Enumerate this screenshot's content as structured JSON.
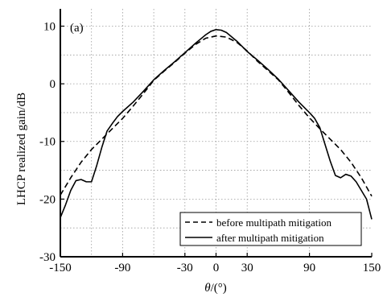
{
  "chart_data": {
    "type": "line",
    "panel_label": "(a)",
    "xlabel_symbol": "θ",
    "xlabel_rest": "/(°)",
    "ylabel": "LHCP realized gain/dB",
    "xlim": [
      -150,
      150
    ],
    "ylim": [
      -30,
      13
    ],
    "x_ticks": [
      -150,
      -90,
      -30,
      0,
      30,
      90,
      150
    ],
    "y_ticks": [
      10,
      0,
      -10,
      -20,
      -30
    ],
    "x_minor_grid": [
      -120,
      -60
    ],
    "y_minor_grid": [
      5,
      -5,
      -15,
      -25
    ],
    "grid": true,
    "legend_position": "bottom-right",
    "series": [
      {
        "name": "before multipath mitigation",
        "style": "dashed",
        "color": "#000000",
        "x": [
          -150,
          -140,
          -130,
          -120,
          -110,
          -100,
          -90,
          -80,
          -70,
          -60,
          -50,
          -40,
          -30,
          -20,
          -10,
          0,
          10,
          20,
          30,
          40,
          50,
          60,
          70,
          80,
          90,
          100,
          110,
          120,
          130,
          140,
          150
        ],
        "y": [
          -19.3,
          -16.3,
          -13.6,
          -11.4,
          -9.6,
          -7.8,
          -6.0,
          -3.9,
          -1.7,
          0.6,
          2.2,
          3.7,
          5.3,
          6.8,
          7.9,
          8.3,
          8.1,
          7.2,
          5.7,
          3.9,
          2.3,
          0.7,
          -1.5,
          -3.8,
          -5.9,
          -7.8,
          -9.6,
          -11.4,
          -13.6,
          -16.3,
          -19.5
        ]
      },
      {
        "name": "after multipath mitigation",
        "style": "solid",
        "color": "#000000",
        "x": [
          -150,
          -145,
          -140,
          -135,
          -130,
          -125,
          -120,
          -115,
          -110,
          -105,
          -100,
          -95,
          -90,
          -80,
          -70,
          -60,
          -50,
          -40,
          -30,
          -20,
          -10,
          -5,
          0,
          5,
          10,
          20,
          30,
          40,
          50,
          60,
          70,
          80,
          90,
          95,
          100,
          105,
          110,
          115,
          120,
          125,
          130,
          135,
          140,
          145,
          150
        ],
        "y": [
          -23.2,
          -21.0,
          -18.5,
          -16.8,
          -16.6,
          -17.0,
          -17.0,
          -14.2,
          -11.0,
          -8.2,
          -6.9,
          -5.7,
          -4.8,
          -3.2,
          -1.3,
          0.7,
          2.3,
          3.8,
          5.4,
          7.0,
          8.5,
          9.1,
          9.4,
          9.3,
          8.9,
          7.4,
          5.6,
          4.1,
          2.5,
          0.8,
          -1.2,
          -3.2,
          -5.0,
          -6.0,
          -7.6,
          -10.5,
          -13.4,
          -15.9,
          -16.3,
          -15.7,
          -16.0,
          -17.0,
          -18.5,
          -20.0,
          -23.5
        ]
      }
    ]
  }
}
